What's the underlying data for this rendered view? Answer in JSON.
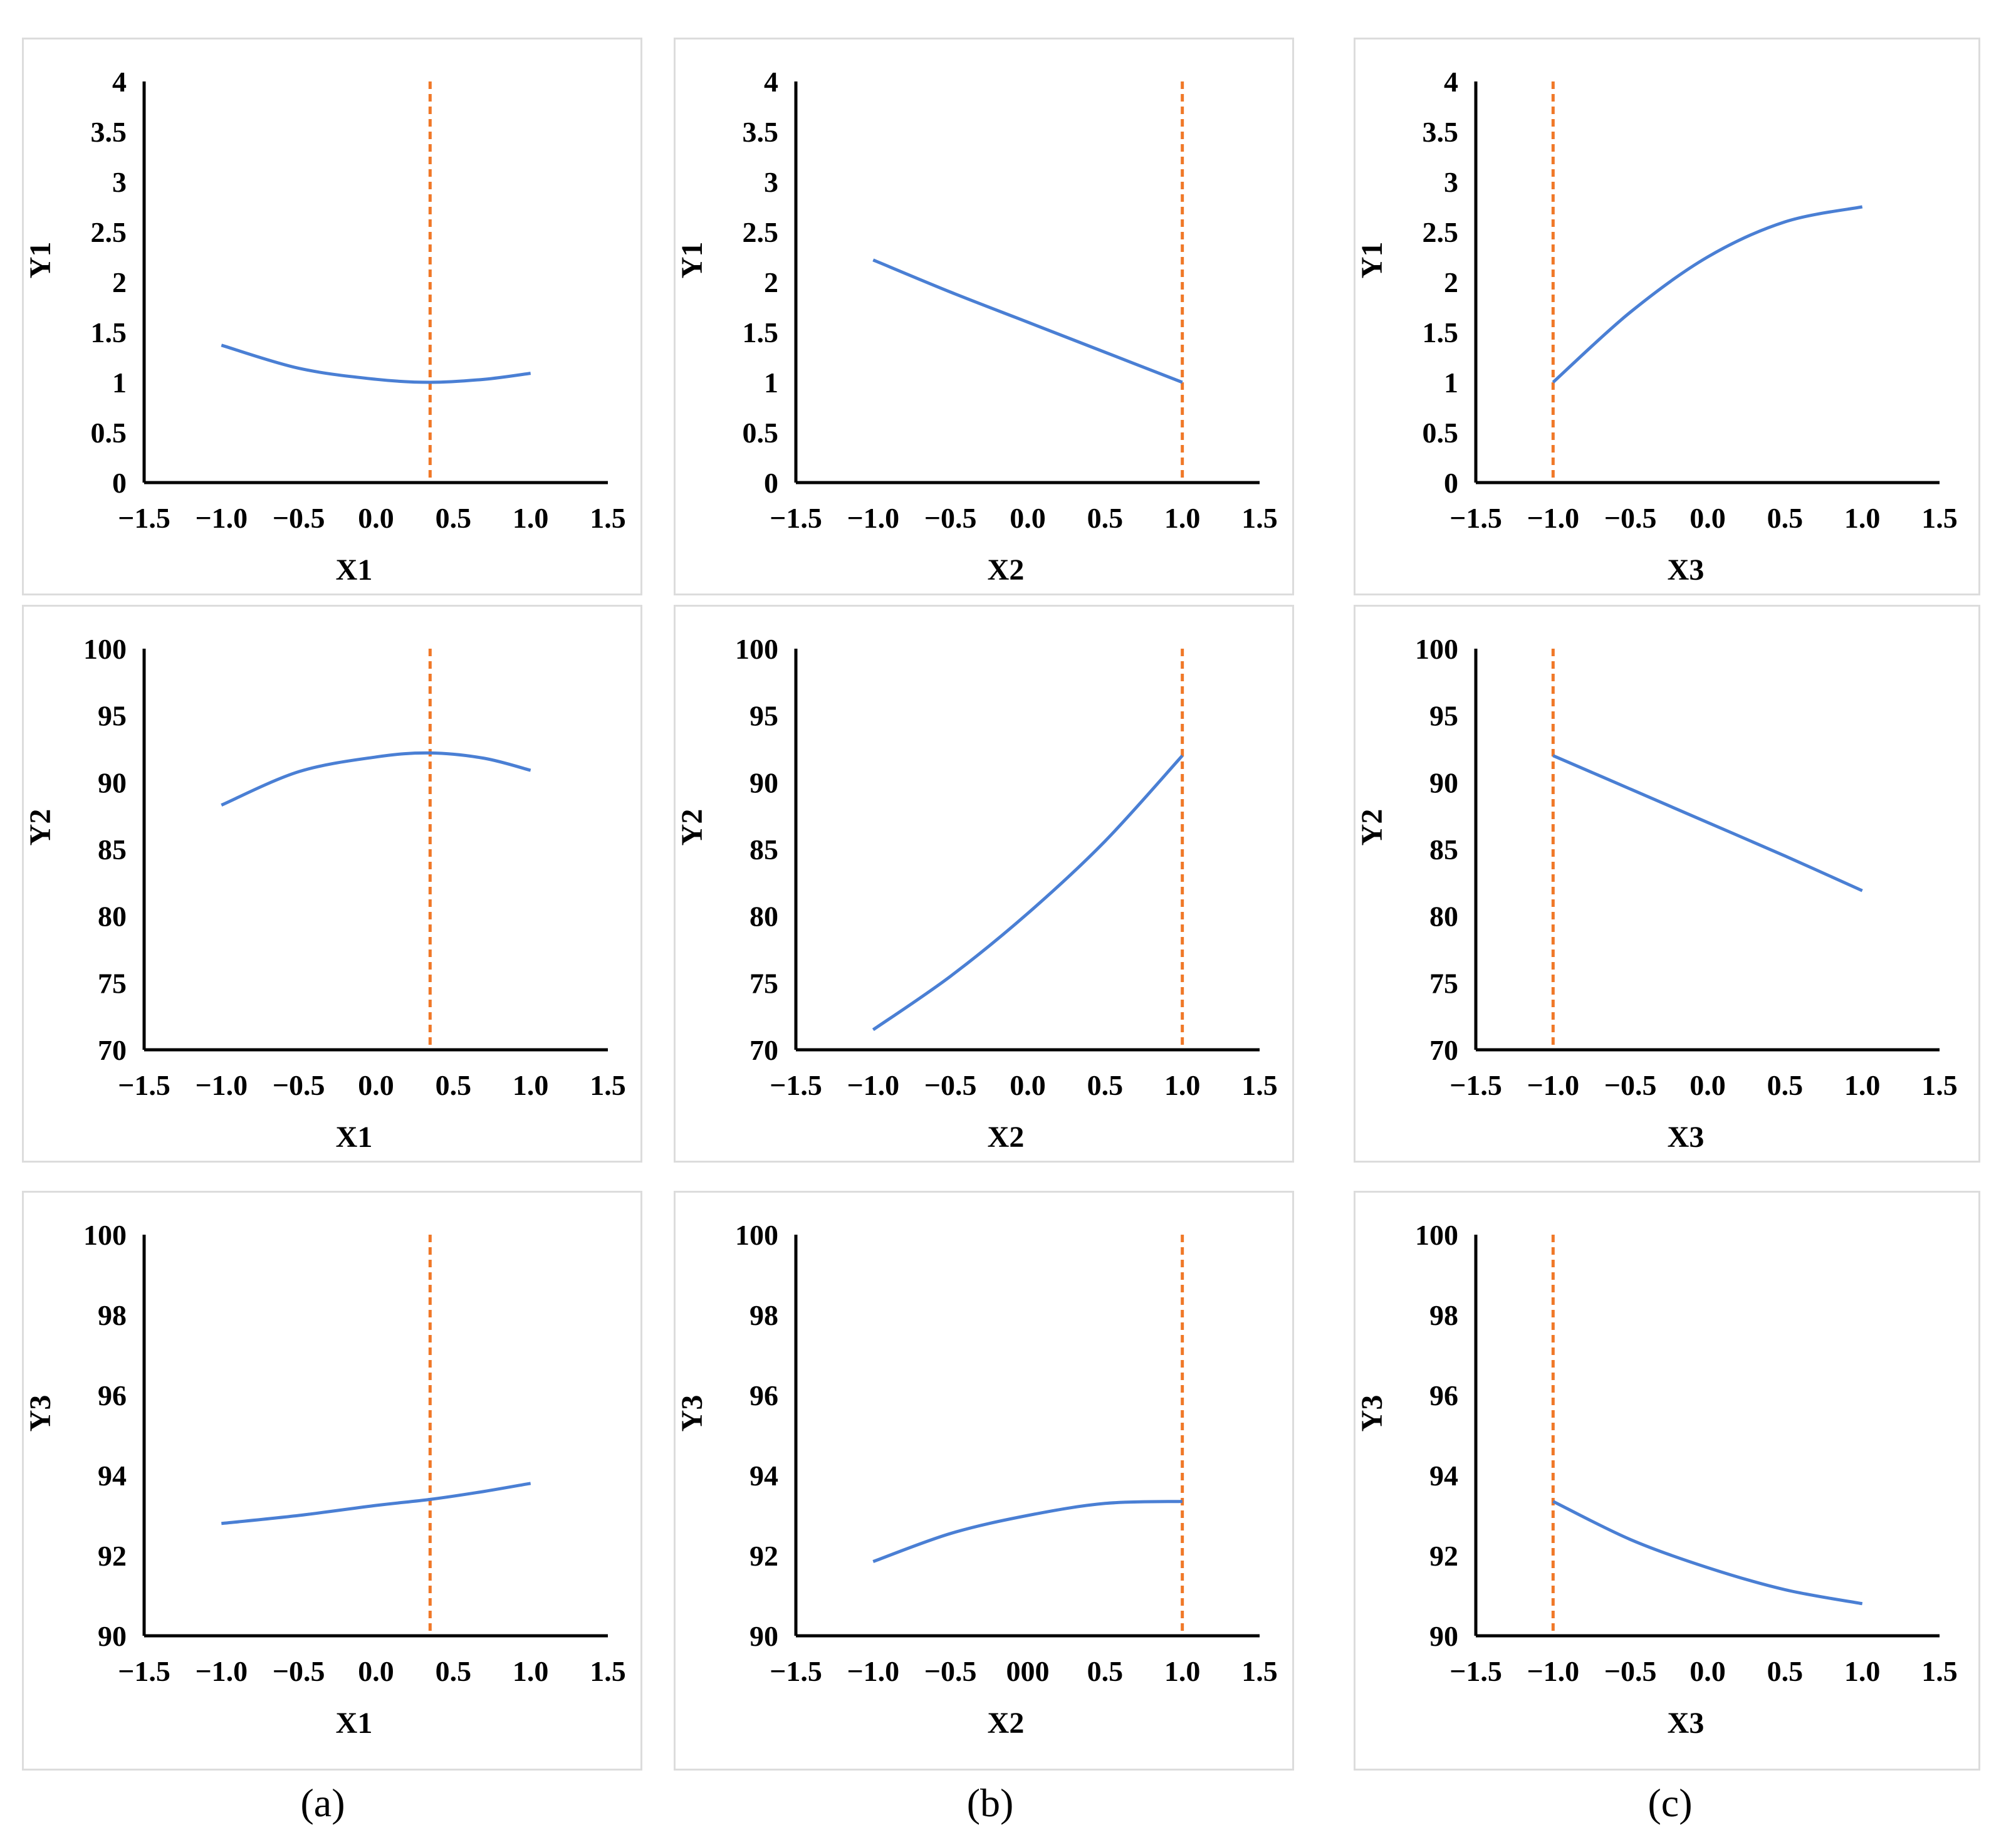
{
  "colors": {
    "curve": "#4a7fd4",
    "optimum": "#f07828",
    "axis": "#000000",
    "frame": "#dcdcdc"
  },
  "captions": [
    "(a)",
    "(b)",
    "(c)"
  ],
  "chart_data": [
    {
      "type": "line",
      "column": 0,
      "row": 0,
      "xlabel": "X1",
      "ylabel": "Y1",
      "xlim": [
        -1.5,
        1.5
      ],
      "ylim": [
        0,
        4
      ],
      "xticks": [
        "−1.5",
        "−1.0",
        "−0.5",
        "0.0",
        "0.5",
        "1.0",
        "1.5"
      ],
      "yticks": [
        "0",
        "0.5",
        "1",
        "1.5",
        "2",
        "2.5",
        "3",
        "3.5",
        "4"
      ],
      "x": [
        -1.0,
        -0.5,
        0.0,
        0.35,
        0.7,
        1.0
      ],
      "y": [
        1.37,
        1.14,
        1.03,
        1.0,
        1.03,
        1.09
      ],
      "optimum_x": 0.35
    },
    {
      "type": "line",
      "column": 1,
      "row": 0,
      "xlabel": "X2",
      "ylabel": "Y1",
      "xlim": [
        -1.5,
        1.5
      ],
      "ylim": [
        0,
        4
      ],
      "xticks": [
        "−1.5",
        "−1.0",
        "−0.5",
        "0.0",
        "0.5",
        "1.0",
        "1.5"
      ],
      "yticks": [
        "0",
        "0.5",
        "1",
        "1.5",
        "2",
        "2.5",
        "3",
        "3.5",
        "4"
      ],
      "x": [
        -1.0,
        -0.5,
        0.0,
        0.5,
        1.0
      ],
      "y": [
        2.22,
        1.9,
        1.6,
        1.3,
        1.0
      ],
      "optimum_x": 1.0
    },
    {
      "type": "line",
      "column": 2,
      "row": 0,
      "xlabel": "X3",
      "ylabel": "Y1",
      "xlim": [
        -1.5,
        1.5
      ],
      "ylim": [
        0,
        4
      ],
      "xticks": [
        "−1.5",
        "−1.0",
        "−0.5",
        "0.0",
        "0.5",
        "1.0",
        "1.5"
      ],
      "yticks": [
        "0",
        "0.5",
        "1",
        "1.5",
        "2",
        "2.5",
        "3",
        "3.5",
        "4"
      ],
      "x": [
        -1.0,
        -0.5,
        0.0,
        0.5,
        1.0
      ],
      "y": [
        1.0,
        1.7,
        2.25,
        2.6,
        2.75
      ],
      "optimum_x": -1.0
    },
    {
      "type": "line",
      "column": 0,
      "row": 1,
      "xlabel": "X1",
      "ylabel": "Y2",
      "xlim": [
        -1.5,
        1.5
      ],
      "ylim": [
        70,
        100
      ],
      "xticks": [
        "−1.5",
        "−1.0",
        "−0.5",
        "0.0",
        "0.5",
        "1.0",
        "1.5"
      ],
      "yticks": [
        "70",
        "75",
        "80",
        "85",
        "90",
        "95",
        "100"
      ],
      "x": [
        -1.0,
        -0.5,
        0.0,
        0.35,
        0.7,
        1.0
      ],
      "y": [
        88.3,
        90.8,
        91.9,
        92.2,
        91.8,
        90.9
      ],
      "optimum_x": 0.35
    },
    {
      "type": "line",
      "column": 1,
      "row": 1,
      "xlabel": "X2",
      "ylabel": "Y2",
      "xlim": [
        -1.5,
        1.5
      ],
      "ylim": [
        70,
        100
      ],
      "xticks": [
        "−1.5",
        "−1.0",
        "−0.5",
        "0.0",
        "0.5",
        "1.0",
        "1.5"
      ],
      "yticks": [
        "70",
        "75",
        "80",
        "85",
        "90",
        "95",
        "100"
      ],
      "x": [
        -1.0,
        -0.5,
        0.0,
        0.5,
        1.0
      ],
      "y": [
        71.5,
        75.5,
        80.2,
        85.6,
        92.0
      ],
      "optimum_x": 1.0
    },
    {
      "type": "line",
      "column": 2,
      "row": 1,
      "xlabel": "X3",
      "ylabel": "Y2",
      "xlim": [
        -1.5,
        1.5
      ],
      "ylim": [
        70,
        100
      ],
      "xticks": [
        "−1.5",
        "−1.0",
        "−0.5",
        "0.0",
        "0.5",
        "1.0",
        "1.5"
      ],
      "yticks": [
        "70",
        "75",
        "80",
        "85",
        "90",
        "95",
        "100"
      ],
      "x": [
        -1.0,
        -0.5,
        0.0,
        0.5,
        1.0
      ],
      "y": [
        92.0,
        89.5,
        87.0,
        84.5,
        81.9
      ],
      "optimum_x": -1.0
    },
    {
      "type": "line",
      "column": 0,
      "row": 2,
      "xlabel": "X1",
      "ylabel": "Y3",
      "xlim": [
        -1.5,
        1.5
      ],
      "ylim": [
        90,
        100
      ],
      "xticks": [
        "−1.5",
        "−1.0",
        "−0.5",
        "0.0",
        "0.5",
        "1.0",
        "1.5"
      ],
      "yticks": [
        "90",
        "92",
        "94",
        "96",
        "98",
        "100"
      ],
      "x": [
        -1.0,
        -0.5,
        0.0,
        0.35,
        0.7,
        1.0
      ],
      "y": [
        92.8,
        93.0,
        93.25,
        93.4,
        93.6,
        93.8
      ],
      "optimum_x": 0.35
    },
    {
      "type": "line",
      "column": 1,
      "row": 2,
      "xlabel": "X2",
      "ylabel": "Y3",
      "xlim": [
        -1.5,
        1.5
      ],
      "ylim": [
        90,
        100
      ],
      "xticks": [
        "−1.5",
        "−1.0",
        "−0.5",
        "000",
        "0.5",
        "1.0",
        "1.5"
      ],
      "yticks": [
        "90",
        "92",
        "94",
        "96",
        "98",
        "100"
      ],
      "x": [
        -1.0,
        -0.5,
        0.0,
        0.5,
        1.0
      ],
      "y": [
        91.85,
        92.55,
        93.0,
        93.3,
        93.35
      ],
      "optimum_x": 1.0
    },
    {
      "type": "line",
      "column": 2,
      "row": 2,
      "xlabel": "X3",
      "ylabel": "Y3",
      "xlim": [
        -1.5,
        1.5
      ],
      "ylim": [
        90,
        100
      ],
      "xticks": [
        "−1.5",
        "−1.0",
        "−0.5",
        "0.0",
        "0.5",
        "1.0",
        "1.5"
      ],
      "yticks": [
        "90",
        "92",
        "94",
        "96",
        "98",
        "100"
      ],
      "x": [
        -1.0,
        -0.5,
        0.0,
        0.5,
        1.0
      ],
      "y": [
        93.35,
        92.4,
        91.7,
        91.15,
        90.8
      ],
      "optimum_x": -1.0
    }
  ]
}
